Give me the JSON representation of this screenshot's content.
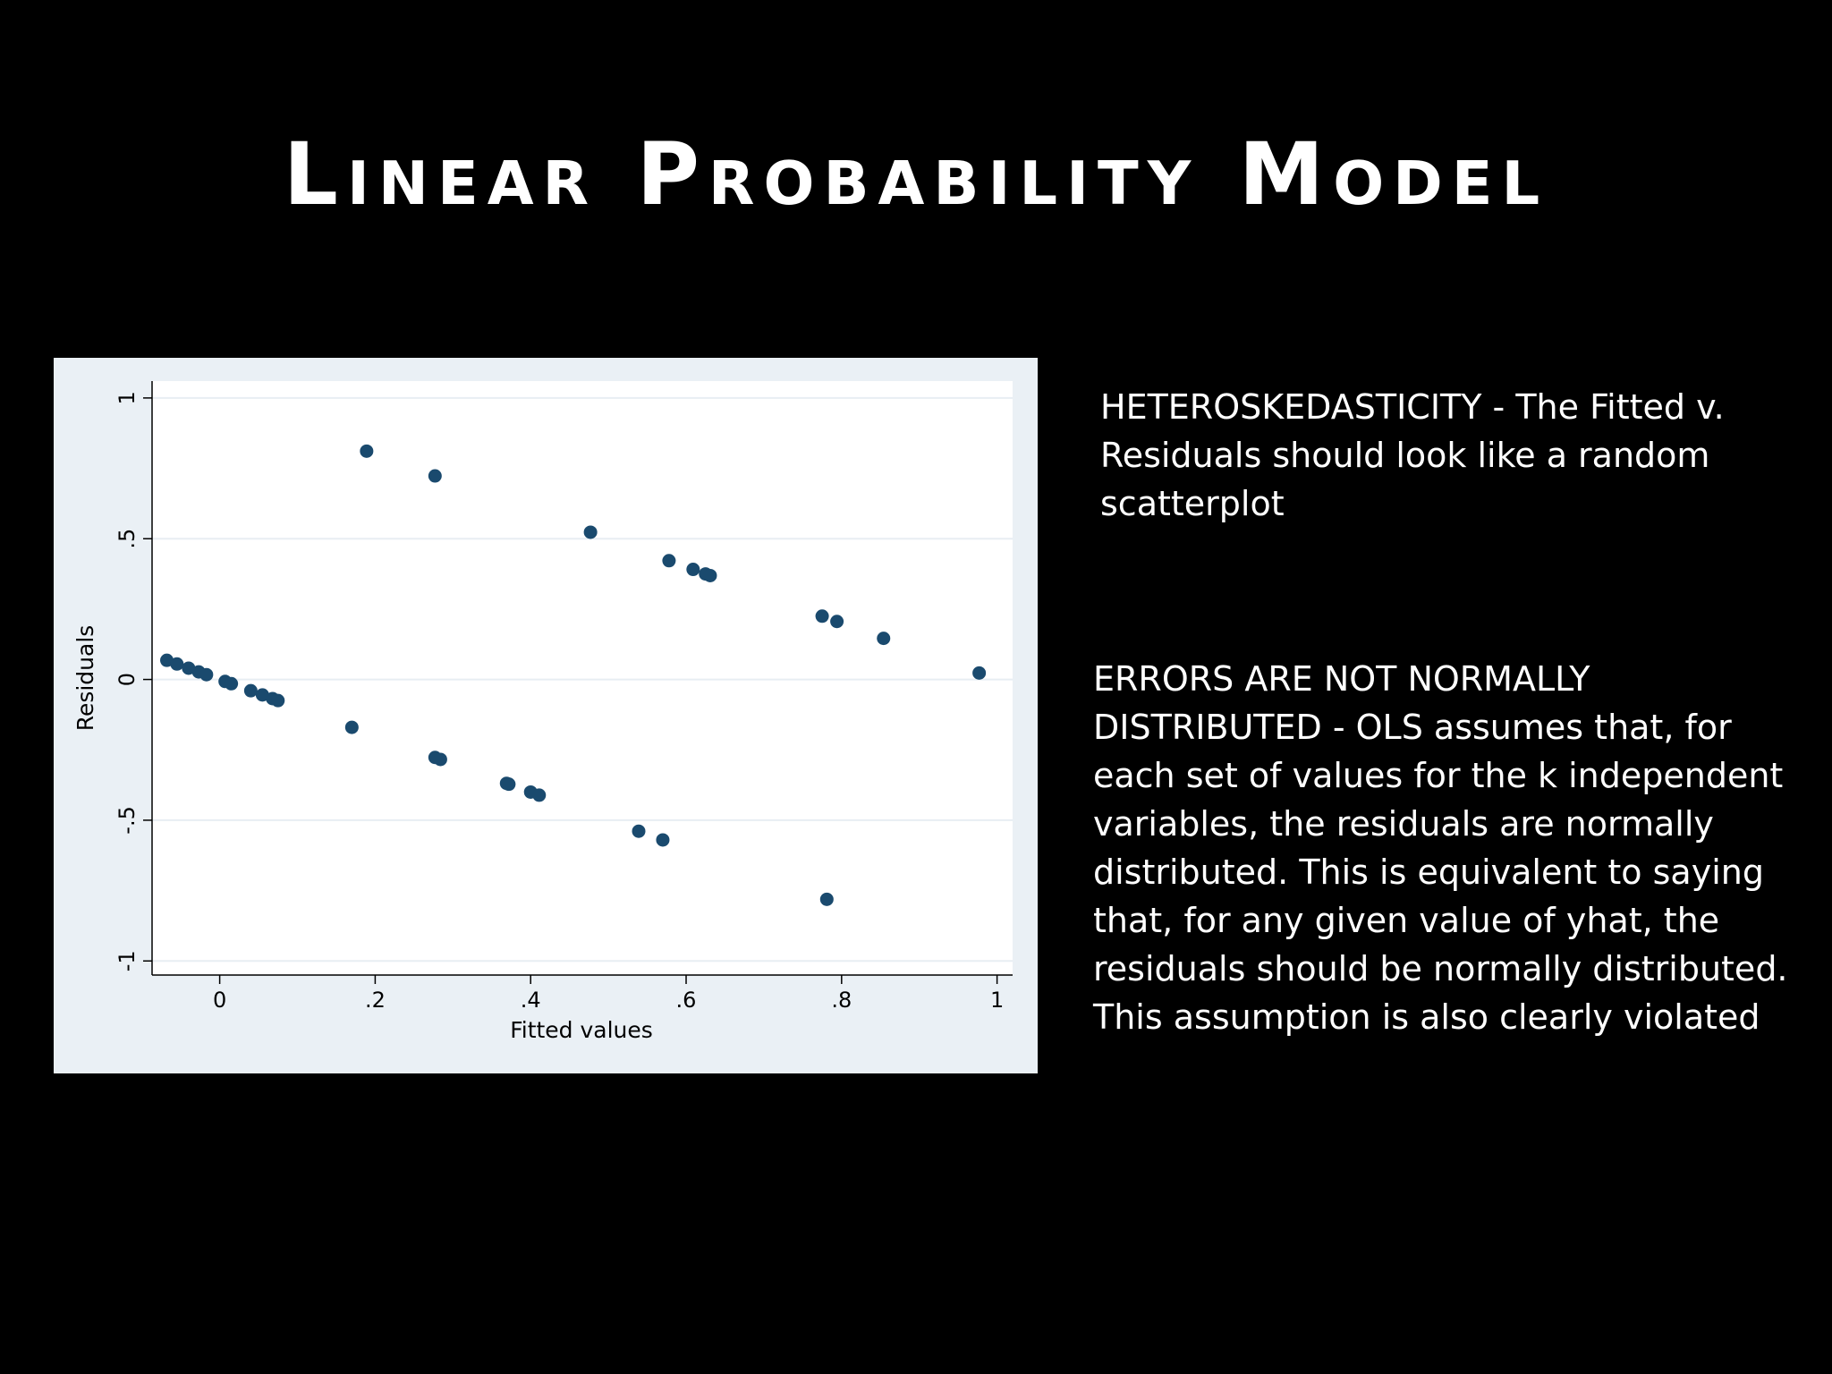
{
  "slide": {
    "title": "Linear Probability Model"
  },
  "notes": {
    "heteroskedasticity": "HETEROSKEDASTICITY - The Fitted v. Residuals should look like a random scatterplot",
    "normality": "ERRORS ARE NOT NORMALLY DISTRIBUTED - OLS assumes that, for each set of values for the k independent variables, the residuals are normally distributed. This is equivalent to saying that, for any given value of yhat, the residuals should be normally distributed. This assumption is also clearly violated"
  },
  "chart_data": {
    "type": "scatter",
    "title": "",
    "xlabel": "Fitted values",
    "ylabel": "Residuals",
    "xlim": [
      -0.087,
      1.02
    ],
    "ylim": [
      -1.05,
      1.06
    ],
    "xticks": [
      0,
      0.2,
      0.4,
      0.6,
      0.8,
      1
    ],
    "xtick_labels": [
      "0",
      ".2",
      ".4",
      ".6",
      ".8",
      "1"
    ],
    "yticks": [
      -1,
      -0.5,
      0,
      0.5,
      1
    ],
    "ytick_labels": [
      "-1",
      "-.5",
      "0",
      ".5",
      "1"
    ],
    "grid": true,
    "colors": {
      "marker": "#1a4a6e",
      "plot_background": "#ffffff",
      "panel_background": "#eaf0f5",
      "grid": "#e8eef3"
    },
    "points": [
      {
        "x": -0.068,
        "y": 0.068
      },
      {
        "x": -0.055,
        "y": 0.055
      },
      {
        "x": -0.04,
        "y": 0.04
      },
      {
        "x": -0.027,
        "y": 0.027
      },
      {
        "x": -0.017,
        "y": 0.017
      },
      {
        "x": 0.007,
        "y": -0.007
      },
      {
        "x": 0.015,
        "y": -0.015
      },
      {
        "x": 0.04,
        "y": -0.04
      },
      {
        "x": 0.055,
        "y": -0.055
      },
      {
        "x": 0.068,
        "y": -0.068
      },
      {
        "x": 0.075,
        "y": -0.075
      },
      {
        "x": 0.17,
        "y": -0.17
      },
      {
        "x": 0.189,
        "y": 0.811
      },
      {
        "x": 0.277,
        "y": 0.723
      },
      {
        "x": 0.277,
        "y": -0.277
      },
      {
        "x": 0.284,
        "y": -0.284
      },
      {
        "x": 0.369,
        "y": -0.369
      },
      {
        "x": 0.372,
        "y": -0.372
      },
      {
        "x": 0.4,
        "y": -0.4
      },
      {
        "x": 0.411,
        "y": -0.411
      },
      {
        "x": 0.477,
        "y": 0.523
      },
      {
        "x": 0.539,
        "y": -0.539
      },
      {
        "x": 0.57,
        "y": -0.57
      },
      {
        "x": 0.578,
        "y": 0.422
      },
      {
        "x": 0.609,
        "y": 0.391
      },
      {
        "x": 0.625,
        "y": 0.375
      },
      {
        "x": 0.631,
        "y": 0.369
      },
      {
        "x": 0.775,
        "y": 0.225
      },
      {
        "x": 0.781,
        "y": -0.781
      },
      {
        "x": 0.794,
        "y": 0.206
      },
      {
        "x": 0.854,
        "y": 0.146
      },
      {
        "x": 0.977,
        "y": 0.023
      }
    ]
  }
}
